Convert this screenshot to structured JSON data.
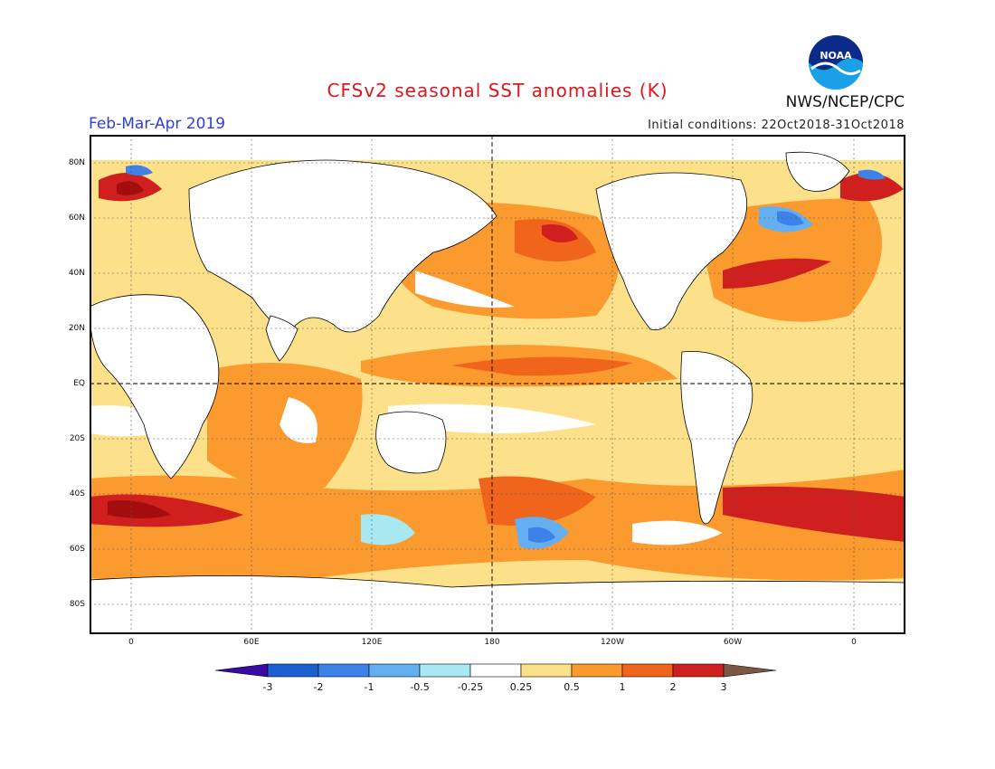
{
  "title": "CFSv2 seasonal SST anomalies (K)",
  "period": "Feb-Mar-Apr 2019",
  "initial_conditions": "Initial conditions: 22Oct2018-31Oct2018",
  "agency": "NWS/NCEP/CPC",
  "logo_text": "NOAA",
  "lat_labels": [
    "80N",
    "60N",
    "40N",
    "20N",
    "EQ",
    "20S",
    "40S",
    "60S",
    "80S"
  ],
  "lon_labels": [
    "0",
    "60E",
    "120E",
    "180",
    "120W",
    "60W",
    "0"
  ],
  "colorbar": {
    "labels": [
      "-3",
      "-2",
      "-1",
      "-0.5",
      "-0.25",
      "0.25",
      "0.5",
      "1",
      "2",
      "3"
    ],
    "colors": [
      "#3a0aa5",
      "#1c5fd2",
      "#3c82e8",
      "#64aff0",
      "#a8e8f0",
      "#ffffff",
      "#fde08a",
      "#fb9a2e",
      "#f0651b",
      "#d01f1f",
      "#a30d0d",
      "#7a5744"
    ]
  },
  "map": {
    "lat_range": [
      -90,
      90
    ],
    "lon_range": [
      -20,
      380
    ],
    "colors": {
      "land": "#ffffff",
      "frame": "#000000"
    }
  }
}
